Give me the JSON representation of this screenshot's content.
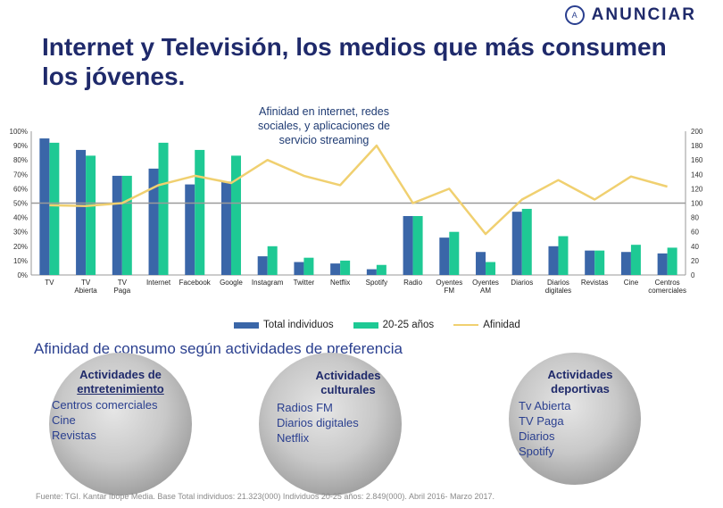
{
  "brand": {
    "name": "ANUNCIAR",
    "mark": "A"
  },
  "title": "Internet y Televisión, los medios que más consumen los jóvenes.",
  "annotation": "Afinidad en internet, redes sociales, y aplicaciones de servicio streaming",
  "colors": {
    "total": "#3a66a8",
    "young": "#1ec994",
    "affinity": "#f0d070",
    "refline": "#9a9a9a",
    "title": "#1f2a6b"
  },
  "chart_data": {
    "type": "bar",
    "categories": [
      "TV",
      "TV Abierta",
      "TV Paga",
      "Internet",
      "Facebook",
      "Google",
      "Instagram",
      "Twitter",
      "Netflix",
      "Spotify",
      "Radio",
      "Oyentes FM",
      "Oyentes AM",
      "Diarios",
      "Diarios digitales",
      "Revistas",
      "Cine",
      "Centros comerciales"
    ],
    "series": [
      {
        "name": "Total individuos",
        "axis": "left",
        "kind": "bar",
        "values": [
          95,
          87,
          69,
          74,
          63,
          65,
          13,
          9,
          8,
          4,
          41,
          26,
          16,
          44,
          20,
          17,
          16,
          15
        ]
      },
      {
        "name": "20-25 años",
        "axis": "left",
        "kind": "bar",
        "values": [
          92,
          83,
          69,
          92,
          87,
          83,
          20,
          12,
          10,
          7,
          41,
          30,
          9,
          46,
          27,
          17,
          21,
          19
        ]
      },
      {
        "name": "Afinidad",
        "axis": "right",
        "kind": "line",
        "values": [
          97,
          96,
          100,
          125,
          138,
          128,
          160,
          138,
          125,
          180,
          100,
          120,
          57,
          105,
          132,
          105,
          137,
          123
        ]
      }
    ],
    "ylim_left": [
      0,
      100
    ],
    "ylim_right": [
      0,
      200
    ],
    "yticks_left": [
      "0%",
      "10%",
      "20%",
      "30%",
      "40%",
      "50%",
      "60%",
      "70%",
      "80%",
      "90%",
      "100%"
    ],
    "yticks_right": [
      "0",
      "20",
      "40",
      "60",
      "80",
      "100",
      "120",
      "140",
      "160",
      "180",
      "200"
    ],
    "reference_line_right": 100
  },
  "legend": {
    "total": "Total individuos",
    "young": "20-25 años",
    "affinity": "Afinidad"
  },
  "subtitle": "Afinidad de consumo según actividades de preferencia",
  "cards": [
    {
      "title_line1": "Actividades de",
      "title_line2": "entretenimiento",
      "items": [
        "Centros comerciales",
        "Cine",
        "Revistas"
      ]
    },
    {
      "title_line1": "Actividades",
      "title_line2": "culturales",
      "items": [
        "Radios FM",
        "Diarios digitales",
        "Netflix"
      ]
    },
    {
      "title_line1": "Actividades",
      "title_line2": "deportivas",
      "items": [
        "Tv Abierta",
        "TV Paga",
        "Diarios",
        "Spotify"
      ]
    }
  ],
  "source": "Fuente: TGI. Kantar Ibope Media. Base Total individuos: 21.323(000) Individuos 20-25 años: 2.849(000). Abril 2016- Marzo 2017."
}
